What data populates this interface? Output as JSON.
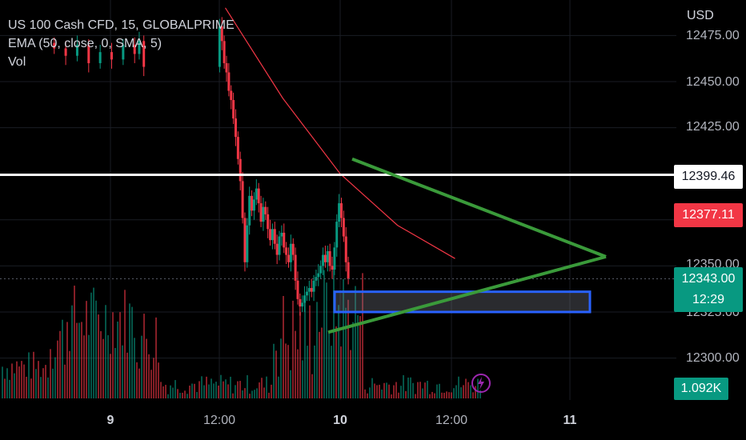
{
  "legend": {
    "symbol": "US 100 Cash CFD, 15, GLOBALPRIME",
    "ema": "EMA (50, close, 0, SMA, 5)",
    "vol": "Vol"
  },
  "axis": {
    "currency": "USD",
    "y_ticks": [
      "12475.00",
      "12450.00",
      "12425.00",
      "12350.00",
      "12325.00",
      "12300.00"
    ],
    "x_ticks": [
      "9",
      "12:00",
      "10",
      "12:00",
      "11"
    ]
  },
  "price_labels": {
    "white_line": "12399.46",
    "ema": "12377.11",
    "last": "12343.00",
    "countdown": "12:29",
    "volume": "1.092K"
  },
  "colors": {
    "up": "#089981",
    "down": "#f23645",
    "triangle": "#3a9a3a",
    "zone_border": "#2962ff",
    "ema_line": "#f23645",
    "white_line": "#ffffff",
    "lightning": "#9c27b0"
  },
  "icons": {
    "lightning": "lightning-icon"
  },
  "chart_data": {
    "type": "candlestick",
    "title": "US 100 Cash CFD, 15, GLOBALPRIME",
    "ylim": [
      12290,
      12485
    ],
    "y_axis_ticks": [
      12300,
      12325,
      12350,
      12425,
      12450,
      12475
    ],
    "x_axis_ticks": [
      "9",
      "12:00",
      "10",
      "12:00",
      "11"
    ],
    "series": [
      {
        "name": "EMA (50, close, 0, SMA, 5)",
        "values_x": [
          0.5,
          0.75,
          1.0,
          1.25,
          1.5
        ],
        "values_y": [
          12490,
          12441,
          12400,
          12372,
          12354
        ]
      }
    ],
    "closes_hour_index": [
      [
        -0.25,
        12468
      ],
      [
        -0.2,
        12464
      ],
      [
        -0.15,
        12470
      ],
      [
        -0.1,
        12460
      ],
      [
        -0.05,
        12466
      ],
      [
        0.0,
        12462
      ],
      [
        0.05,
        12470
      ],
      [
        0.1,
        12465
      ],
      [
        0.12,
        12472
      ],
      [
        0.14,
        12458
      ],
      [
        0.47,
        12480
      ],
      [
        0.48,
        12472
      ],
      [
        0.49,
        12460
      ],
      [
        0.5,
        12455
      ],
      [
        0.51,
        12445
      ],
      [
        0.52,
        12440
      ],
      [
        0.53,
        12430
      ],
      [
        0.54,
        12420
      ],
      [
        0.55,
        12408
      ],
      [
        0.56,
        12396
      ],
      [
        0.57,
        12376
      ],
      [
        0.58,
        12352
      ],
      [
        0.59,
        12372
      ],
      [
        0.6,
        12388
      ],
      [
        0.61,
        12380
      ],
      [
        0.62,
        12386
      ],
      [
        0.63,
        12392
      ],
      [
        0.64,
        12384
      ],
      [
        0.65,
        12374
      ],
      [
        0.66,
        12382
      ],
      [
        0.67,
        12378
      ],
      [
        0.68,
        12370
      ],
      [
        0.69,
        12364
      ],
      [
        0.7,
        12370
      ],
      [
        0.71,
        12362
      ],
      [
        0.72,
        12356
      ],
      [
        0.73,
        12366
      ],
      [
        0.74,
        12368
      ],
      [
        0.75,
        12360
      ],
      [
        0.76,
        12356
      ],
      [
        0.77,
        12352
      ],
      [
        0.78,
        12362
      ],
      [
        0.79,
        12356
      ],
      [
        0.8,
        12342
      ],
      [
        0.81,
        12332
      ],
      [
        0.82,
        12328
      ],
      [
        0.83,
        12330
      ],
      [
        0.84,
        12334
      ],
      [
        0.85,
        12336
      ],
      [
        0.86,
        12338
      ],
      [
        0.87,
        12336
      ],
      [
        0.88,
        12342
      ],
      [
        0.89,
        12344
      ],
      [
        0.9,
        12346
      ],
      [
        0.91,
        12350
      ],
      [
        0.92,
        12356
      ],
      [
        0.93,
        12352
      ],
      [
        0.94,
        12358
      ],
      [
        0.95,
        12350
      ],
      [
        0.96,
        12348
      ],
      [
        0.97,
        12360
      ],
      [
        0.98,
        12374
      ],
      [
        0.99,
        12384
      ],
      [
        1.0,
        12376
      ],
      [
        1.01,
        12366
      ],
      [
        1.02,
        12352
      ],
      [
        1.03,
        12343
      ]
    ],
    "annotations": {
      "triangle_upper": [
        [
          12408,
          "10 start"
        ],
        [
          12384,
          "10 12:00"
        ],
        [
          12355,
          "apex"
        ]
      ],
      "triangle_lower": [
        [
          12314,
          "before 10"
        ],
        [
          12355,
          "apex"
        ]
      ],
      "support_zone": [
        12325,
        12336
      ],
      "horizontal_line": 12399.46
    }
  }
}
